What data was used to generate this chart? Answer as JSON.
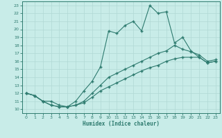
{
  "title": "",
  "xlabel": "Humidex (Indice chaleur)",
  "background_color": "#c8ece8",
  "grid_color": "#b0d8d4",
  "line_color": "#2d7a6e",
  "xlim": [
    -0.5,
    23.5
  ],
  "ylim": [
    9.5,
    23.5
  ],
  "xticks": [
    0,
    1,
    2,
    3,
    4,
    5,
    6,
    7,
    8,
    9,
    10,
    11,
    12,
    13,
    14,
    15,
    16,
    17,
    18,
    19,
    20,
    21,
    22,
    23
  ],
  "yticks": [
    10,
    11,
    12,
    13,
    14,
    15,
    16,
    17,
    18,
    19,
    20,
    21,
    22,
    23
  ],
  "line1_x": [
    0,
    1,
    2,
    3,
    4,
    5,
    6,
    7,
    8,
    9,
    10,
    11,
    12,
    13,
    14,
    15,
    16,
    17,
    18,
    19,
    20,
    21,
    22,
    23
  ],
  "line1_y": [
    12,
    11.7,
    11,
    11,
    10.5,
    10.3,
    11,
    12.3,
    13.5,
    15.3,
    19.8,
    19.5,
    20.5,
    21.0,
    19.8,
    23.0,
    22.0,
    22.2,
    18.3,
    19.0,
    17.3,
    16.5,
    15.8,
    16.0
  ],
  "line2_x": [
    0,
    1,
    2,
    3,
    4,
    5,
    6,
    7,
    8,
    9,
    10,
    11,
    12,
    13,
    14,
    15,
    16,
    17,
    18,
    19,
    20,
    21,
    22,
    23
  ],
  "line2_y": [
    12,
    11.7,
    11,
    10.5,
    10.3,
    10.3,
    10.5,
    11.0,
    12.0,
    13.0,
    14.0,
    14.5,
    15.0,
    15.5,
    16.0,
    16.5,
    17.0,
    17.3,
    18.0,
    17.5,
    17.2,
    16.8,
    16.0,
    16.2
  ],
  "line3_x": [
    0,
    1,
    2,
    3,
    4,
    5,
    6,
    7,
    8,
    9,
    10,
    11,
    12,
    13,
    14,
    15,
    16,
    17,
    18,
    19,
    20,
    21,
    22,
    23
  ],
  "line3_y": [
    12,
    11.7,
    11,
    10.5,
    10.3,
    10.3,
    10.5,
    10.8,
    11.5,
    12.3,
    12.8,
    13.3,
    13.8,
    14.3,
    14.8,
    15.2,
    15.5,
    16.0,
    16.3,
    16.5,
    16.5,
    16.5,
    15.8,
    16.0
  ]
}
